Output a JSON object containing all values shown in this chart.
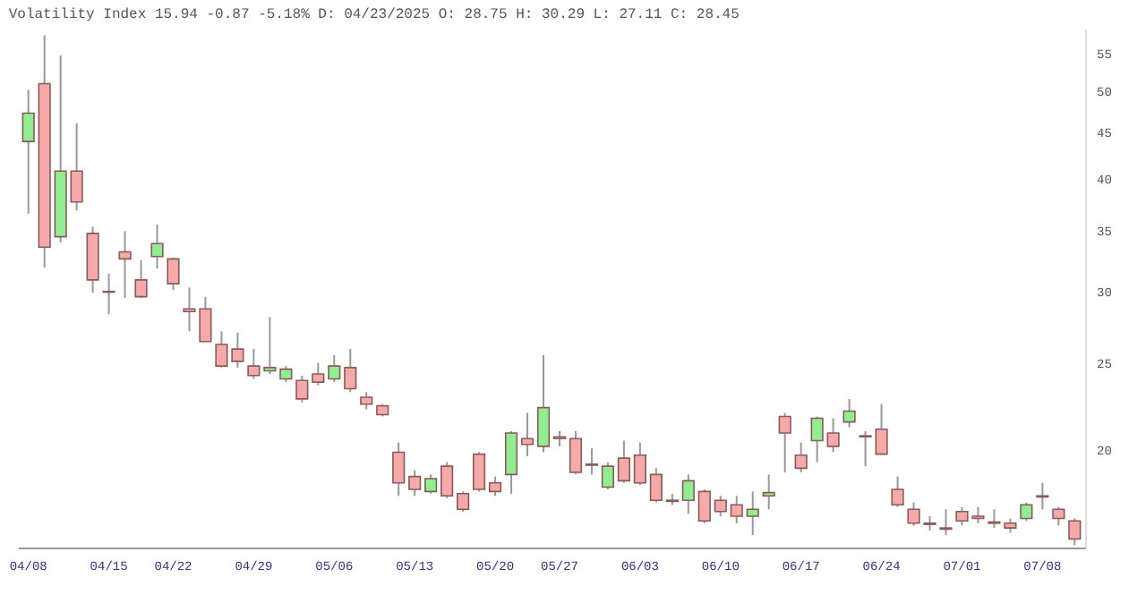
{
  "chart_data": {
    "type": "candlestick",
    "title": "Volatility Index 15.94 -0.87 -5.18% D: 04/23/2025 O: 28.75 H: 30.29 L: 27.11 C: 28.45",
    "categories": [
      "04/08",
      null,
      null,
      null,
      null,
      "04/15",
      null,
      null,
      null,
      "04/22",
      null,
      null,
      null,
      null,
      "04/29",
      null,
      null,
      null,
      null,
      "05/06",
      null,
      null,
      null,
      null,
      "05/13",
      null,
      null,
      null,
      null,
      "05/20",
      null,
      null,
      null,
      "05/27",
      null,
      null,
      null,
      null,
      "06/03",
      null,
      null,
      null,
      null,
      "06/10",
      null,
      null,
      null,
      null,
      "06/17",
      null,
      null,
      null,
      null,
      "06/24",
      null,
      null,
      null,
      null,
      "07/01",
      null,
      null,
      null,
      null,
      "07/08",
      null,
      null
    ],
    "ohlc": [
      [
        44.0,
        50.2,
        36.6,
        47.3
      ],
      [
        51.0,
        57.7,
        31.9,
        33.6
      ],
      [
        34.5,
        54.8,
        34.0,
        40.8
      ],
      [
        40.8,
        46.1,
        36.9,
        37.7
      ],
      [
        34.8,
        35.4,
        29.9,
        30.9
      ],
      [
        30.0,
        31.4,
        28.3,
        29.95
      ],
      [
        33.2,
        35.0,
        29.5,
        32.6
      ],
      [
        30.9,
        32.5,
        29.5,
        29.6
      ],
      [
        32.8,
        35.6,
        31.8,
        33.9
      ],
      [
        32.6,
        32.7,
        30.1,
        30.6
      ],
      [
        28.7,
        30.3,
        27.1,
        28.5
      ],
      [
        28.7,
        29.6,
        26.4,
        26.4
      ],
      [
        26.2,
        27.1,
        24.7,
        24.8
      ],
      [
        25.9,
        27.0,
        24.7,
        25.1
      ],
      [
        24.8,
        25.9,
        24.0,
        24.2
      ],
      [
        24.5,
        28.1,
        24.3,
        24.7
      ],
      [
        24.0,
        24.8,
        23.8,
        24.6
      ],
      [
        23.9,
        24.2,
        22.6,
        22.8
      ],
      [
        24.3,
        25.0,
        23.6,
        23.8
      ],
      [
        24.0,
        25.5,
        23.8,
        24.8
      ],
      [
        24.7,
        25.9,
        23.2,
        23.4
      ],
      [
        22.9,
        23.2,
        22.2,
        22.5
      ],
      [
        22.4,
        22.5,
        21.8,
        21.9
      ],
      [
        19.9,
        20.4,
        17.8,
        18.4
      ],
      [
        18.7,
        19.0,
        17.8,
        18.1
      ],
      [
        18.0,
        18.8,
        17.9,
        18.6
      ],
      [
        19.2,
        19.4,
        17.7,
        17.8
      ],
      [
        17.9,
        18.0,
        17.1,
        17.2
      ],
      [
        19.8,
        19.9,
        18.0,
        18.1
      ],
      [
        18.4,
        18.7,
        17.8,
        18.0
      ],
      [
        18.8,
        21.0,
        17.9,
        20.9
      ],
      [
        20.6,
        22.0,
        19.7,
        20.3
      ],
      [
        20.2,
        25.5,
        19.9,
        22.3
      ],
      [
        20.7,
        21.0,
        20.2,
        20.6
      ],
      [
        20.6,
        21.0,
        18.8,
        18.9
      ],
      [
        19.3,
        20.1,
        18.8,
        19.25
      ],
      [
        18.2,
        19.4,
        18.1,
        19.2
      ],
      [
        19.6,
        20.5,
        18.4,
        18.5
      ],
      [
        19.75,
        20.4,
        18.3,
        18.4
      ],
      [
        18.8,
        19.1,
        17.5,
        17.6
      ],
      [
        17.6,
        17.9,
        17.4,
        17.55
      ],
      [
        17.6,
        18.8,
        17.0,
        18.5
      ],
      [
        18.0,
        18.1,
        16.6,
        16.7
      ],
      [
        17.6,
        17.8,
        16.9,
        17.1
      ],
      [
        17.4,
        17.8,
        16.6,
        16.9
      ],
      [
        16.9,
        18.0,
        16.1,
        17.2
      ],
      [
        17.8,
        18.8,
        17.2,
        17.95
      ],
      [
        21.8,
        22.0,
        18.9,
        20.9
      ],
      [
        19.75,
        20.4,
        18.9,
        19.1
      ],
      [
        20.5,
        21.8,
        19.4,
        21.7
      ],
      [
        20.9,
        21.7,
        19.9,
        20.2
      ],
      [
        21.5,
        22.8,
        21.2,
        22.1
      ],
      [
        20.75,
        21.0,
        19.2,
        20.7
      ],
      [
        21.1,
        22.5,
        19.8,
        19.8
      ],
      [
        18.1,
        18.7,
        17.3,
        17.4
      ],
      [
        17.2,
        17.5,
        16.5,
        16.6
      ],
      [
        16.6,
        16.9,
        16.3,
        16.55
      ],
      [
        16.4,
        17.2,
        16.1,
        16.35
      ],
      [
        17.1,
        17.3,
        16.5,
        16.7
      ],
      [
        16.9,
        17.3,
        16.6,
        16.8
      ],
      [
        16.65,
        17.2,
        16.4,
        16.6
      ],
      [
        16.6,
        16.8,
        16.2,
        16.4
      ],
      [
        16.8,
        17.5,
        16.7,
        17.4
      ],
      [
        17.8,
        18.4,
        17.2,
        17.75
      ],
      [
        17.2,
        17.3,
        16.5,
        16.8
      ],
      [
        16.7,
        16.8,
        15.7,
        15.94
      ]
    ],
    "colors": [
      "#90ee90",
      "#f5a9a9",
      "#90ee90",
      "#f5a9a9",
      "#f5a9a9",
      "#f5a9a9",
      "#f5a9a9",
      "#f5a9a9",
      "#90ee90",
      "#f5a9a9",
      "#f5a9a9",
      "#f5a9a9",
      "#f5a9a9",
      "#f5a9a9",
      "#f5a9a9",
      "#90ee90",
      "#90ee90",
      "#f5a9a9",
      "#f5a9a9",
      "#90ee90",
      "#f5a9a9",
      "#f5a9a9",
      "#f5a9a9",
      "#f5a9a9",
      "#f5a9a9",
      "#90ee90",
      "#f5a9a9",
      "#f5a9a9",
      "#f5a9a9",
      "#f5a9a9",
      "#90ee90",
      "#f5a9a9",
      "#90ee90",
      "#f5a9a9",
      "#f5a9a9",
      "#f5a9a9",
      "#90ee90",
      "#f5a9a9",
      "#f5a9a9",
      "#f5a9a9",
      "#f5a9a9",
      "#90ee90",
      "#f5a9a9",
      "#f5a9a9",
      "#f5a9a9",
      "#90ee90",
      "#90ee90",
      "#f5a9a9",
      "#f5a9a9",
      "#90ee90",
      "#f5a9a9",
      "#90ee90",
      "#f5a9a9",
      "#f5a9a9",
      "#f5a9a9",
      "#f5a9a9",
      "#f5a9a9",
      "#f5a9a9",
      "#f5a9a9",
      "#f5a9a9",
      "#f5a9a9",
      "#f5a9a9",
      "#90ee90",
      "#f5a9a9",
      "#f5a9a9",
      "#f5a9a9"
    ],
    "log": true,
    "ylim": [
      15.6,
      58.7
    ],
    "yticks": [
      20,
      25,
      30,
      35,
      40,
      45,
      50,
      55
    ],
    "grid": false
  }
}
